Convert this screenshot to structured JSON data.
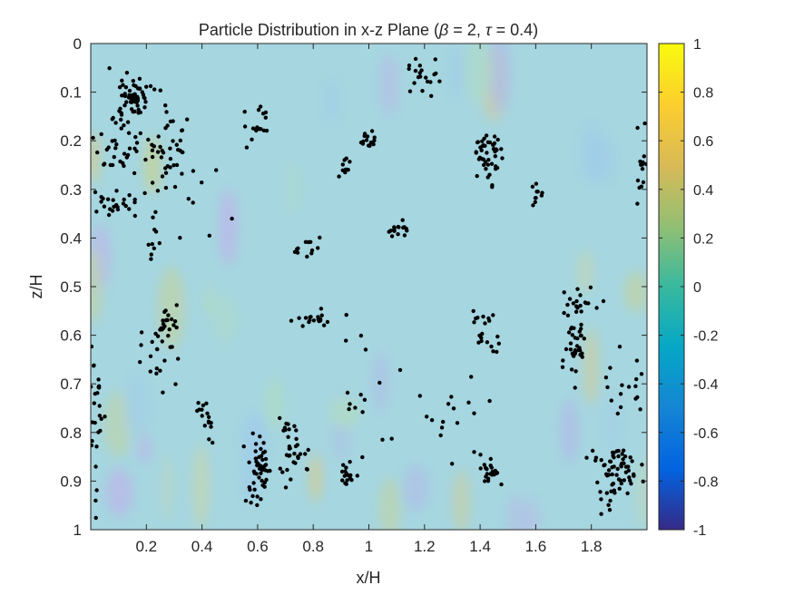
{
  "chart_data": {
    "type": "scatter",
    "title_prefix": "Particle Distribution in x-z Plane (",
    "title_beta": "β",
    "title_mid": " = 2, ",
    "title_tau": "τ",
    "title_suffix": " = 0.4)",
    "xlabel": "x/H",
    "ylabel": "z/H",
    "xlim": [
      0,
      2
    ],
    "ylim": [
      0,
      1
    ],
    "y_reversed": true,
    "xticks": [
      0.2,
      0.4,
      0.6,
      0.8,
      1,
      1.2,
      1.4,
      1.6,
      1.8
    ],
    "xtick_labels": [
      "0.2",
      "0.4",
      "0.6",
      "0.8",
      "1",
      "1.2",
      "1.4",
      "1.6",
      "1.8"
    ],
    "yticks": [
      0,
      0.1,
      0.2,
      0.3,
      0.4,
      0.5,
      0.6,
      0.7,
      0.8,
      0.9,
      1
    ],
    "ytick_labels": [
      "0",
      "0.1",
      "0.2",
      "0.3",
      "0.4",
      "0.5",
      "0.6",
      "0.7",
      "0.8",
      "0.9",
      "1"
    ],
    "background_field": "semi-transparent parula colormap field, values near 0 with small fluctuations",
    "colorbar": {
      "colormap": "parula",
      "clim": [
        -1,
        1
      ],
      "ticks": [
        1,
        0.8,
        0.6,
        0.4,
        0.2,
        0,
        -0.2,
        -0.4,
        -0.6,
        -0.8,
        -1
      ],
      "tick_labels": [
        "1",
        "0.8",
        "0.6",
        "0.4",
        "0.2",
        "0",
        "-0.2",
        "-0.4",
        "-0.6",
        "-0.8",
        "-1"
      ],
      "colors": [
        "#352a87",
        "#0363e1",
        "#1485d4",
        "#06a7c6",
        "#38b99e",
        "#92bf73",
        "#d9ba56",
        "#fcce2e",
        "#f9fb0e"
      ]
    },
    "marker_color": "#000000",
    "series": [
      {
        "clusters": [
          {
            "x": 0.16,
            "z": 0.11,
            "n": 60,
            "sx": 0.025,
            "sz": 0.018
          },
          {
            "x": 0.1,
            "z": 0.19,
            "n": 45,
            "sx": 0.055,
            "sz": 0.045
          },
          {
            "x": 0.28,
            "z": 0.22,
            "n": 40,
            "sx": 0.035,
            "sz": 0.04
          },
          {
            "x": 0.1,
            "z": 0.33,
            "n": 25,
            "sx": 0.05,
            "sz": 0.015
          },
          {
            "x": 0.22,
            "z": 0.4,
            "n": 10,
            "sx": 0.01,
            "sz": 0.025
          },
          {
            "x": 0.59,
            "z": 0.16,
            "n": 18,
            "sx": 0.025,
            "sz": 0.025
          },
          {
            "x": 0.99,
            "z": 0.2,
            "n": 14,
            "sx": 0.02,
            "sz": 0.012
          },
          {
            "x": 0.91,
            "z": 0.25,
            "n": 10,
            "sx": 0.015,
            "sz": 0.01
          },
          {
            "x": 1.19,
            "z": 0.07,
            "n": 20,
            "sx": 0.03,
            "sz": 0.02
          },
          {
            "x": 1.43,
            "z": 0.22,
            "n": 45,
            "sx": 0.025,
            "sz": 0.03
          },
          {
            "x": 1.6,
            "z": 0.31,
            "n": 10,
            "sx": 0.01,
            "sz": 0.01
          },
          {
            "x": 1.1,
            "z": 0.39,
            "n": 16,
            "sx": 0.03,
            "sz": 0.008
          },
          {
            "x": 0.75,
            "z": 0.42,
            "n": 12,
            "sx": 0.03,
            "sz": 0.012
          },
          {
            "x": 0.81,
            "z": 0.57,
            "n": 18,
            "sx": 0.04,
            "sz": 0.008
          },
          {
            "x": 0.27,
            "z": 0.58,
            "n": 22,
            "sx": 0.025,
            "sz": 0.02
          },
          {
            "x": 0.25,
            "z": 0.65,
            "n": 18,
            "sx": 0.04,
            "sz": 0.035
          },
          {
            "x": 0.02,
            "z": 0.75,
            "n": 28,
            "sx": 0.012,
            "sz": 0.09
          },
          {
            "x": 0.41,
            "z": 0.77,
            "n": 16,
            "sx": 0.015,
            "sz": 0.02
          },
          {
            "x": 0.6,
            "z": 0.89,
            "n": 50,
            "sx": 0.02,
            "sz": 0.04
          },
          {
            "x": 0.73,
            "z": 0.84,
            "n": 35,
            "sx": 0.025,
            "sz": 0.035
          },
          {
            "x": 0.92,
            "z": 0.89,
            "n": 15,
            "sx": 0.012,
            "sz": 0.02
          },
          {
            "x": 1.42,
            "z": 0.6,
            "n": 20,
            "sx": 0.03,
            "sz": 0.025
          },
          {
            "x": 1.43,
            "z": 0.88,
            "n": 22,
            "sx": 0.025,
            "sz": 0.015
          },
          {
            "x": 1.74,
            "z": 0.62,
            "n": 35,
            "sx": 0.025,
            "sz": 0.03
          },
          {
            "x": 1.75,
            "z": 0.53,
            "n": 20,
            "sx": 0.04,
            "sz": 0.015
          },
          {
            "x": 1.92,
            "z": 0.7,
            "n": 18,
            "sx": 0.03,
            "sz": 0.04
          },
          {
            "x": 1.89,
            "z": 0.88,
            "n": 65,
            "sx": 0.04,
            "sz": 0.035
          },
          {
            "x": 1.98,
            "z": 0.25,
            "n": 14,
            "sx": 0.012,
            "sz": 0.05
          },
          {
            "x": 1.3,
            "z": 0.75,
            "n": 18,
            "sx": 0.07,
            "sz": 0.07
          },
          {
            "x": 0.95,
            "z": 0.74,
            "n": 16,
            "sx": 0.06,
            "sz": 0.1
          },
          {
            "x": 0.4,
            "z": 0.3,
            "n": 10,
            "sx": 0.08,
            "sz": 0.08
          }
        ]
      }
    ]
  }
}
